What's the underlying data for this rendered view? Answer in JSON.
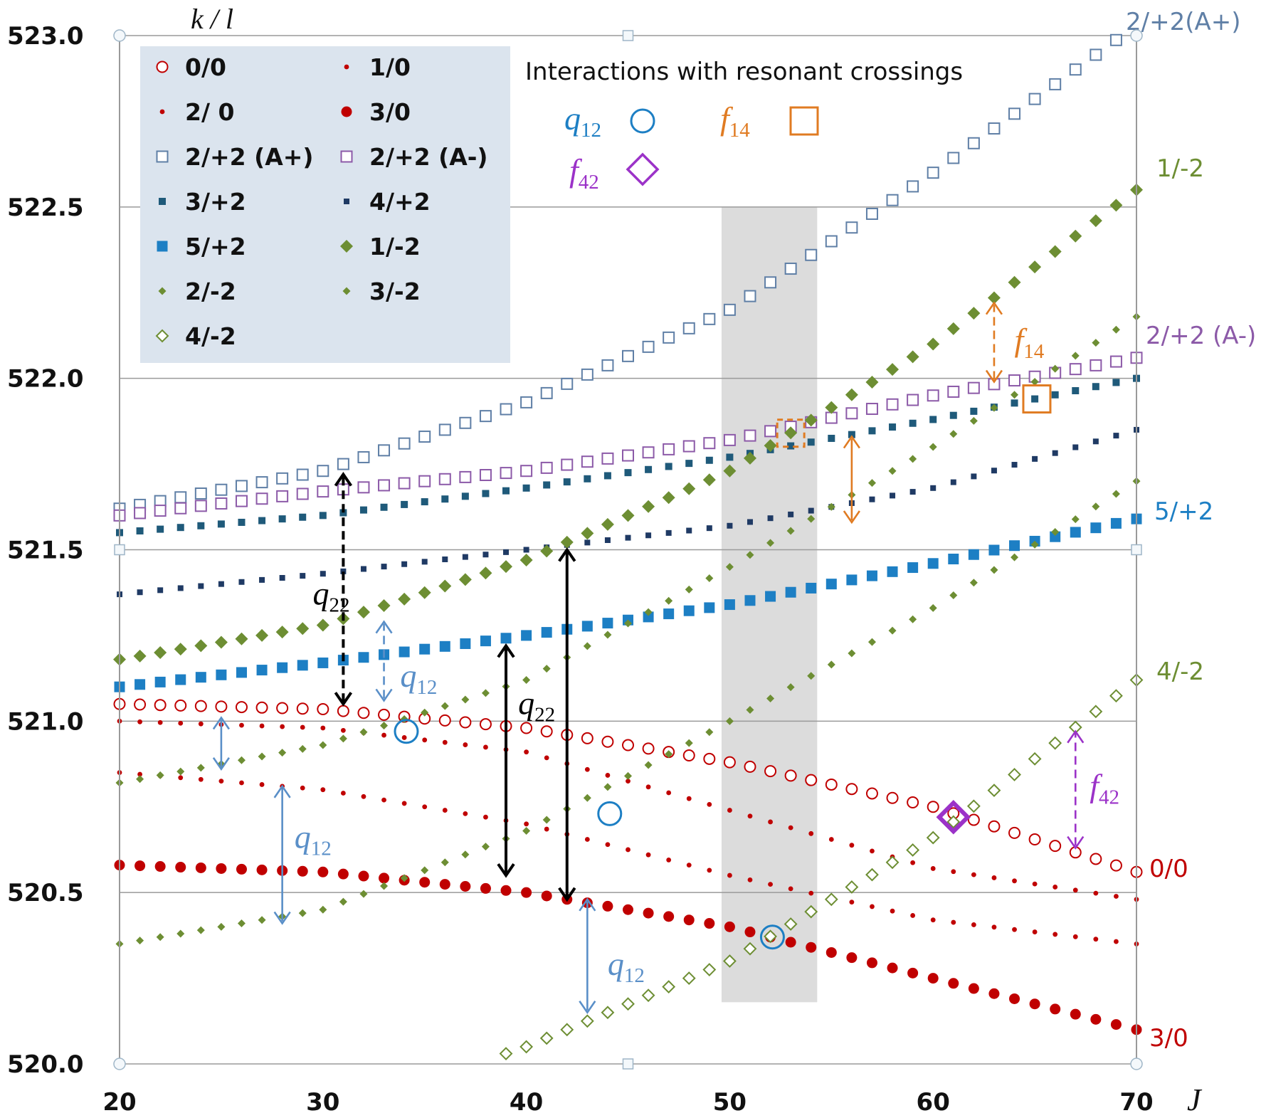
{
  "chart_data": {
    "type": "scatter",
    "title": "",
    "xlabel": "J",
    "ylabel": "",
    "xlim": [
      20,
      70
    ],
    "ylim": [
      520.0,
      523.0
    ],
    "x_ticks": [
      "20",
      "30",
      "40",
      "50",
      "60",
      "70"
    ],
    "y_ticks": [
      "520.0",
      "520.5",
      "521.0",
      "521.5",
      "522.0",
      "522.5",
      "523.0"
    ],
    "grid": "horizontal",
    "legend_position": "top-left",
    "legend_title": "k / l",
    "series": [
      {
        "name": "0/0",
        "right_label": "0/0",
        "color": "#c00000",
        "marker": "circle-open",
        "j": [
          20,
          70
        ],
        "anchors": [
          [
            20,
            521.05
          ],
          [
            30,
            521.035
          ],
          [
            40,
            520.98
          ],
          [
            50,
            520.88
          ],
          [
            60,
            520.75
          ],
          [
            70,
            520.56
          ]
        ]
      },
      {
        "name": "1/0",
        "right_label": "",
        "color": "#c00000",
        "marker": "dot-small",
        "j": [
          20,
          70
        ],
        "anchors": [
          [
            20,
            521.0
          ],
          [
            30,
            520.98
          ],
          [
            40,
            520.91
          ],
          [
            50,
            520.74
          ],
          [
            60,
            520.57
          ],
          [
            70,
            520.48
          ]
        ]
      },
      {
        "name": "2/ 0",
        "right_label": "",
        "color": "#c00000",
        "marker": "dot-small",
        "j": [
          20,
          70
        ],
        "anchors": [
          [
            20,
            520.85
          ],
          [
            30,
            520.8
          ],
          [
            40,
            520.7
          ],
          [
            50,
            520.55
          ],
          [
            60,
            520.42
          ],
          [
            70,
            520.35
          ]
        ]
      },
      {
        "name": "3/0",
        "right_label": "3/0",
        "color": "#c00000",
        "marker": "dot-large",
        "j": [
          20,
          70
        ],
        "anchors": [
          [
            20,
            520.58
          ],
          [
            30,
            520.56
          ],
          [
            40,
            520.5
          ],
          [
            50,
            520.4
          ],
          [
            60,
            520.25
          ],
          [
            70,
            520.1
          ]
        ]
      },
      {
        "name": "2/+2 (A+)",
        "right_label": "2/+2(A+)",
        "color": "#5f7fa6",
        "marker": "square-open",
        "j": [
          20,
          69
        ],
        "anchors": [
          [
            20,
            521.62
          ],
          [
            30,
            521.73
          ],
          [
            40,
            521.93
          ],
          [
            50,
            522.2
          ],
          [
            60,
            522.6
          ],
          [
            70,
            523.03
          ]
        ]
      },
      {
        "name": "2/+2 (A-)",
        "right_label": "2/+2 (A-)",
        "color": "#8c5aa8",
        "marker": "square-open",
        "j": [
          20,
          70
        ],
        "anchors": [
          [
            20,
            521.6
          ],
          [
            30,
            521.67
          ],
          [
            40,
            521.73
          ],
          [
            50,
            521.82
          ],
          [
            60,
            521.95
          ],
          [
            70,
            522.06
          ]
        ]
      },
      {
        "name": "3/+2",
        "right_label": "",
        "color": "#1f5a7a",
        "marker": "square-small",
        "j": [
          20,
          70
        ],
        "anchors": [
          [
            20,
            521.55
          ],
          [
            30,
            521.6
          ],
          [
            40,
            521.68
          ],
          [
            50,
            521.77
          ],
          [
            60,
            521.88
          ],
          [
            70,
            522.0
          ]
        ]
      },
      {
        "name": "4/+2",
        "right_label": "",
        "color": "#1f3a64",
        "marker": "square-tiny",
        "j": [
          20,
          70
        ],
        "anchors": [
          [
            20,
            521.37
          ],
          [
            30,
            521.43
          ],
          [
            40,
            521.5
          ],
          [
            50,
            521.57
          ],
          [
            60,
            521.68
          ],
          [
            70,
            521.85
          ]
        ]
      },
      {
        "name": "5/+2",
        "right_label": "5/+2",
        "color": "#1d7fc4",
        "marker": "square-medium",
        "j": [
          20,
          70
        ],
        "anchors": [
          [
            20,
            521.1
          ],
          [
            30,
            521.17
          ],
          [
            40,
            521.25
          ],
          [
            50,
            521.34
          ],
          [
            60,
            521.46
          ],
          [
            70,
            521.59
          ]
        ]
      },
      {
        "name": "1/-2",
        "right_label": "1/-2",
        "color": "#6d8e33",
        "marker": "diamond-large",
        "j": [
          20,
          70
        ],
        "anchors": [
          [
            20,
            521.18
          ],
          [
            30,
            521.28
          ],
          [
            40,
            521.47
          ],
          [
            50,
            521.73
          ],
          [
            60,
            522.1
          ],
          [
            70,
            522.55
          ]
        ]
      },
      {
        "name": "2/-2",
        "right_label": "",
        "color": "#6d8e33",
        "marker": "diamond-small",
        "j": [
          20,
          70
        ],
        "anchors": [
          [
            20,
            520.82
          ],
          [
            30,
            520.93
          ],
          [
            40,
            521.12
          ],
          [
            50,
            521.45
          ],
          [
            60,
            521.8
          ],
          [
            70,
            522.18
          ]
        ]
      },
      {
        "name": "3/-2",
        "right_label": "",
        "color": "#6d8e33",
        "marker": "diamond-small",
        "j": [
          20,
          70
        ],
        "anchors": [
          [
            20,
            520.35
          ],
          [
            30,
            520.45
          ],
          [
            40,
            520.68
          ],
          [
            50,
            521.0
          ],
          [
            60,
            521.33
          ],
          [
            70,
            521.7
          ]
        ]
      },
      {
        "name": "4/-2",
        "right_label": "4/-2",
        "color": "#6d8e33",
        "marker": "diamond-open",
        "j": [
          39,
          70
        ],
        "anchors": [
          [
            39,
            520.03
          ],
          [
            40,
            520.05
          ],
          [
            50,
            520.3
          ],
          [
            60,
            520.66
          ],
          [
            70,
            521.12
          ]
        ]
      }
    ],
    "shaded_band": {
      "x": [
        49.6,
        54.3
      ],
      "y": [
        520.18,
        522.5
      ]
    },
    "crossings_title": "Interactions with resonant crossings",
    "crossing_legend": [
      {
        "sym": "q",
        "sub": "12",
        "marker": "circle",
        "color": "#1d7fc4"
      },
      {
        "sym": "f",
        "sub": "14",
        "marker": "square",
        "color": "#e07b22"
      },
      {
        "sym": "f",
        "sub": "42",
        "marker": "diamond",
        "color": "#9b32c8"
      }
    ],
    "crossing_markers": [
      {
        "type": "circle",
        "color": "#1d7fc4",
        "x": 34.1,
        "y": 520.97
      },
      {
        "type": "circle",
        "color": "#1d7fc4",
        "x": 44.1,
        "y": 520.73
      },
      {
        "type": "circle",
        "color": "#1d7fc4",
        "x": 52.1,
        "y": 520.37
      },
      {
        "type": "square",
        "color": "#e07b22",
        "x": 65.1,
        "y": 521.94
      },
      {
        "type": "square-dashed",
        "color": "#e07b22",
        "x": 53.0,
        "y": 521.84
      },
      {
        "type": "diamond",
        "color": "#9b32c8",
        "x": 61.0,
        "y": 520.72
      }
    ],
    "annotations": [
      {
        "label": {
          "sym": "q",
          "sub": "22"
        },
        "color": "#000000",
        "style": "dashed",
        "x": 31,
        "y1": 521.05,
        "y2": 521.72,
        "label_at": [
          29.5,
          521.34
        ]
      },
      {
        "label": {
          "sym": "q",
          "sub": "22"
        },
        "color": "#000000",
        "style": "solid",
        "x": 39,
        "y1": 520.55,
        "y2": 521.22,
        "label_at": [
          39.6,
          521.02
        ]
      },
      {
        "label": null,
        "color": "#000000",
        "style": "solid",
        "x": 42,
        "y1": 520.48,
        "y2": 521.5,
        "label_at": null
      },
      {
        "label": {
          "sym": "q",
          "sub": "12"
        },
        "color": "#5a8fc8",
        "style": "dashed",
        "x": 33,
        "y1": 521.06,
        "y2": 521.29,
        "label_at": [
          33.8,
          521.1
        ]
      },
      {
        "label": null,
        "color": "#5a8fc8",
        "style": "solid",
        "x": 25,
        "y1": 520.86,
        "y2": 521.01,
        "label_at": null
      },
      {
        "label": {
          "sym": "q",
          "sub": "12"
        },
        "color": "#5a8fc8",
        "style": "solid",
        "x": 28,
        "y1": 520.41,
        "y2": 520.81,
        "label_at": [
          28.6,
          520.63
        ]
      },
      {
        "label": {
          "sym": "q",
          "sub": "12"
        },
        "color": "#5a8fc8",
        "style": "solid",
        "x": 43,
        "y1": 520.15,
        "y2": 520.48,
        "label_at": [
          44.0,
          520.26
        ]
      },
      {
        "label": {
          "sym": "f",
          "sub": "14"
        },
        "color": "#e07b22",
        "style": "dashed",
        "x": 63,
        "y1": 521.99,
        "y2": 522.22,
        "label_at": [
          64.0,
          522.08
        ]
      },
      {
        "label": null,
        "color": "#e07b22",
        "style": "solid",
        "x": 56,
        "y1": 521.58,
        "y2": 521.83,
        "label_at": null
      },
      {
        "label": {
          "sym": "f",
          "sub": "42"
        },
        "color": "#9b32c8",
        "style": "dashed",
        "x": 67,
        "y1": 520.63,
        "y2": 520.97,
        "label_at": [
          67.7,
          520.78
        ]
      }
    ]
  }
}
